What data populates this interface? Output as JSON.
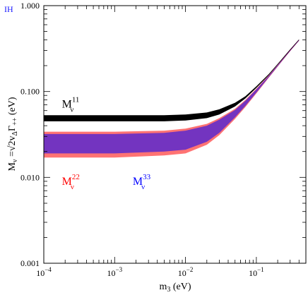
{
  "chart_data": {
    "type": "scatter",
    "corner_tag": "IH",
    "corner_tag_color": "#1a1aff",
    "xlabel": {
      "main": "m",
      "sub": "3",
      "unit": " (eV)"
    },
    "ylabel": {
      "main": "M",
      "sub": "ν",
      "eq": " =√2v",
      "sub2": "Δ",
      "gamma": "Γ",
      "sub3": "++",
      "unit": "  (eV)"
    },
    "x_scale": "log",
    "y_scale": "log",
    "xlim": [
      0.0001,
      0.5
    ],
    "ylim": [
      0.001,
      1.0
    ],
    "x_tick_labels": [
      {
        "value": 0.0001,
        "base": "10",
        "exp": "−4"
      },
      {
        "value": 0.001,
        "base": "10",
        "exp": "−3"
      },
      {
        "value": 0.01,
        "base": "10",
        "exp": "−2"
      },
      {
        "value": 0.1,
        "base": "10",
        "exp": "−1"
      }
    ],
    "y_tick_labels": [
      {
        "value": 0.001,
        "label": "0.001"
      },
      {
        "value": 0.01,
        "label": "0.010"
      },
      {
        "value": 0.1,
        "label": "0.100"
      },
      {
        "value": 1.0,
        "label": "1.000"
      }
    ],
    "grid": false,
    "series": [
      {
        "name": "M^11_ν",
        "color": "#000000",
        "label": {
          "main": "M",
          "sup": "11",
          "sub": "ν",
          "x": 0.00018,
          "y": 0.065
        },
        "band": {
          "m3": [
            0.0001,
            0.001,
            0.005,
            0.01,
            0.02,
            0.03,
            0.05,
            0.07,
            0.1,
            0.15,
            0.2,
            0.3,
            0.4
          ],
          "lower": [
            0.045,
            0.045,
            0.045,
            0.046,
            0.049,
            0.054,
            0.067,
            0.083,
            0.11,
            0.155,
            0.205,
            0.3,
            0.395
          ],
          "upper": [
            0.053,
            0.053,
            0.053,
            0.054,
            0.057,
            0.062,
            0.074,
            0.088,
            0.115,
            0.16,
            0.21,
            0.31,
            0.405
          ]
        }
      },
      {
        "name": "M^22_ν",
        "color": "#ff0000",
        "label": {
          "main": "M",
          "sup": "22",
          "sub": "ν",
          "x": 0.00018,
          "y": 0.0082
        },
        "band": {
          "m3": [
            0.0001,
            0.001,
            0.005,
            0.01,
            0.02,
            0.03,
            0.05,
            0.07,
            0.1,
            0.15,
            0.2,
            0.3,
            0.4
          ],
          "lower": [
            0.017,
            0.017,
            0.018,
            0.019,
            0.024,
            0.031,
            0.048,
            0.066,
            0.095,
            0.145,
            0.195,
            0.295,
            0.39
          ],
          "upper": [
            0.034,
            0.034,
            0.035,
            0.037,
            0.042,
            0.049,
            0.063,
            0.08,
            0.108,
            0.155,
            0.205,
            0.305,
            0.4
          ]
        }
      },
      {
        "name": "M^33_ν",
        "color": "#0000ff",
        "label": {
          "main": "M",
          "sup": "33",
          "sub": "ν",
          "x": 0.0018,
          "y": 0.0082
        },
        "band": {
          "m3": [
            0.0001,
            0.001,
            0.005,
            0.01,
            0.02,
            0.03,
            0.05,
            0.07,
            0.1,
            0.15,
            0.2,
            0.3,
            0.4
          ],
          "lower": [
            0.019,
            0.019,
            0.02,
            0.021,
            0.026,
            0.033,
            0.05,
            0.068,
            0.097,
            0.147,
            0.197,
            0.297,
            0.392
          ],
          "upper": [
            0.032,
            0.032,
            0.033,
            0.035,
            0.04,
            0.047,
            0.061,
            0.078,
            0.106,
            0.153,
            0.203,
            0.303,
            0.398
          ]
        }
      }
    ]
  }
}
